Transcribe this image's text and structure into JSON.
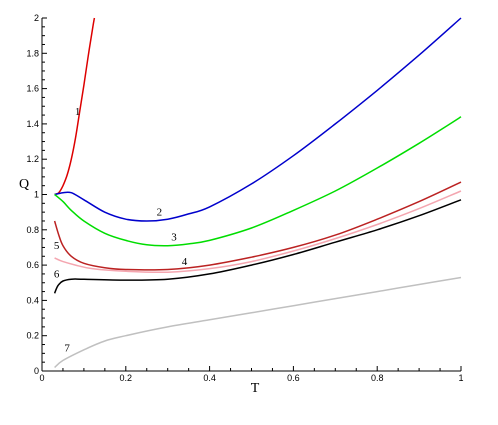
{
  "chart_data": {
    "type": "line",
    "xlabel": "T",
    "ylabel": "Q",
    "xlim": [
      0,
      1
    ],
    "ylim": [
      0,
      2
    ],
    "x_ticks": [
      "0",
      "0.2",
      "0.4",
      "0.6",
      "0.8",
      "1"
    ],
    "y_ticks": [
      "0",
      "0.2",
      "0.4",
      "0.6",
      "0.8",
      "1",
      "1.2",
      "1.4",
      "1.6",
      "1.8",
      "2"
    ],
    "grid": false,
    "series": [
      {
        "label": "1",
        "color": "#dd0000",
        "points": [
          [
            0.03,
            1.0
          ],
          [
            0.04,
            1.01
          ],
          [
            0.05,
            1.05
          ],
          [
            0.06,
            1.11
          ],
          [
            0.07,
            1.2
          ],
          [
            0.08,
            1.32
          ],
          [
            0.09,
            1.47
          ],
          [
            0.1,
            1.62
          ],
          [
            0.11,
            1.78
          ],
          [
            0.12,
            1.93
          ],
          [
            0.125,
            2.0
          ]
        ]
      },
      {
        "label": "2",
        "color": "#0000cc",
        "points": [
          [
            0.03,
            1.0
          ],
          [
            0.05,
            1.01
          ],
          [
            0.07,
            1.01
          ],
          [
            0.1,
            0.97
          ],
          [
            0.15,
            0.9
          ],
          [
            0.2,
            0.86
          ],
          [
            0.25,
            0.85
          ],
          [
            0.3,
            0.86
          ],
          [
            0.35,
            0.89
          ],
          [
            0.4,
            0.93
          ],
          [
            0.5,
            1.06
          ],
          [
            0.6,
            1.22
          ],
          [
            0.7,
            1.4
          ],
          [
            0.8,
            1.59
          ],
          [
            0.9,
            1.79
          ],
          [
            1.0,
            2.0
          ]
        ]
      },
      {
        "label": "3",
        "color": "#00dd00",
        "points": [
          [
            0.03,
            1.0
          ],
          [
            0.05,
            0.96
          ],
          [
            0.07,
            0.91
          ],
          [
            0.1,
            0.85
          ],
          [
            0.15,
            0.78
          ],
          [
            0.2,
            0.74
          ],
          [
            0.25,
            0.715
          ],
          [
            0.3,
            0.71
          ],
          [
            0.35,
            0.72
          ],
          [
            0.4,
            0.74
          ],
          [
            0.5,
            0.81
          ],
          [
            0.6,
            0.91
          ],
          [
            0.7,
            1.02
          ],
          [
            0.8,
            1.15
          ],
          [
            0.9,
            1.29
          ],
          [
            1.0,
            1.44
          ]
        ]
      },
      {
        "label": "4",
        "color": "#bb2222",
        "points": [
          [
            0.03,
            0.85
          ],
          [
            0.04,
            0.77
          ],
          [
            0.05,
            0.71
          ],
          [
            0.07,
            0.65
          ],
          [
            0.1,
            0.61
          ],
          [
            0.15,
            0.585
          ],
          [
            0.2,
            0.575
          ],
          [
            0.3,
            0.575
          ],
          [
            0.4,
            0.6
          ],
          [
            0.5,
            0.645
          ],
          [
            0.6,
            0.7
          ],
          [
            0.7,
            0.77
          ],
          [
            0.8,
            0.86
          ],
          [
            0.9,
            0.96
          ],
          [
            1.0,
            1.07
          ]
        ]
      },
      {
        "label": "5",
        "color": "#f4a6b0",
        "points": [
          [
            0.03,
            0.64
          ],
          [
            0.05,
            0.62
          ],
          [
            0.08,
            0.6
          ],
          [
            0.12,
            0.58
          ],
          [
            0.2,
            0.565
          ],
          [
            0.3,
            0.56
          ],
          [
            0.4,
            0.58
          ],
          [
            0.5,
            0.62
          ],
          [
            0.6,
            0.68
          ],
          [
            0.7,
            0.75
          ],
          [
            0.8,
            0.83
          ],
          [
            0.9,
            0.92
          ],
          [
            1.0,
            1.02
          ]
        ]
      },
      {
        "label": "6",
        "color": "#000000",
        "points": [
          [
            0.03,
            0.44
          ],
          [
            0.035,
            0.47
          ],
          [
            0.04,
            0.49
          ],
          [
            0.05,
            0.51
          ],
          [
            0.07,
            0.52
          ],
          [
            0.1,
            0.52
          ],
          [
            0.2,
            0.515
          ],
          [
            0.3,
            0.52
          ],
          [
            0.4,
            0.55
          ],
          [
            0.5,
            0.6
          ],
          [
            0.6,
            0.66
          ],
          [
            0.7,
            0.73
          ],
          [
            0.8,
            0.8
          ],
          [
            0.9,
            0.88
          ],
          [
            1.0,
            0.97
          ]
        ]
      },
      {
        "label": "7",
        "color": "#c0c0c0",
        "points": [
          [
            0.03,
            0.02
          ],
          [
            0.05,
            0.06
          ],
          [
            0.1,
            0.12
          ],
          [
            0.15,
            0.17
          ],
          [
            0.2,
            0.2
          ],
          [
            0.3,
            0.25
          ],
          [
            0.4,
            0.29
          ],
          [
            0.5,
            0.33
          ],
          [
            0.6,
            0.37
          ],
          [
            0.7,
            0.41
          ],
          [
            0.8,
            0.45
          ],
          [
            0.9,
            0.49
          ],
          [
            1.0,
            0.53
          ]
        ]
      }
    ],
    "annotations": [
      {
        "text": "1",
        "x": 0.085,
        "y": 1.45
      },
      {
        "text": "2",
        "x": 0.28,
        "y": 0.88
      },
      {
        "text": "3",
        "x": 0.315,
        "y": 0.74
      },
      {
        "text": "4",
        "x": 0.34,
        "y": 0.6
      },
      {
        "text": "5",
        "x": 0.035,
        "y": 0.69
      },
      {
        "text": "6",
        "x": 0.035,
        "y": 0.53
      },
      {
        "text": "7",
        "x": 0.06,
        "y": 0.11
      }
    ]
  }
}
